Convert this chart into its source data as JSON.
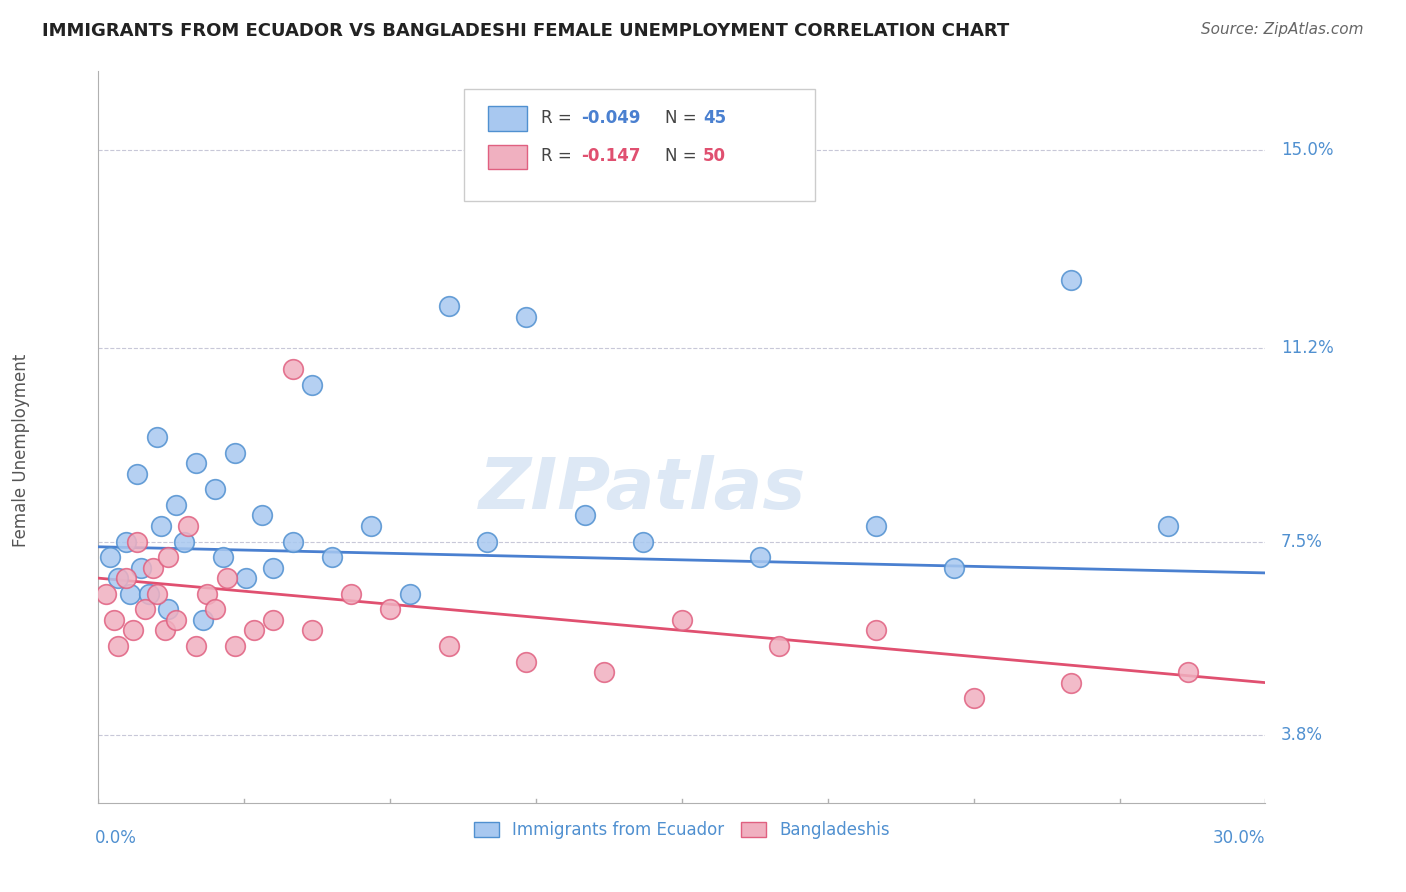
{
  "title": "IMMIGRANTS FROM ECUADOR VS BANGLADESHI FEMALE UNEMPLOYMENT CORRELATION CHART",
  "source": "Source: ZipAtlas.com",
  "ylabel": "Female Unemployment",
  "ytick_labels": [
    "3.8%",
    "7.5%",
    "11.2%",
    "15.0%"
  ],
  "ytick_values": [
    3.8,
    7.5,
    11.2,
    15.0
  ],
  "xrange": [
    0.0,
    30.0
  ],
  "yrange": [
    2.5,
    16.5
  ],
  "color_blue": "#a8c8f0",
  "color_pink": "#f0b0c0",
  "color_blue_edge": "#5090d0",
  "color_pink_edge": "#e06080",
  "color_blue_line": "#4a80d0",
  "color_pink_line": "#e05070",
  "color_title": "#222222",
  "color_yticks": "#5090d0",
  "color_xticks": "#5090d0",
  "blue_x": [
    0.3,
    0.5,
    0.7,
    0.8,
    1.0,
    1.1,
    1.3,
    1.5,
    1.6,
    1.8,
    2.0,
    2.2,
    2.5,
    2.7,
    3.0,
    3.2,
    3.5,
    3.8,
    4.2,
    4.5,
    5.0,
    5.5,
    6.0,
    7.0,
    8.0,
    9.0,
    10.0,
    11.0,
    12.5,
    14.0,
    17.0,
    20.0,
    22.0,
    25.0,
    27.5
  ],
  "blue_y": [
    7.2,
    6.8,
    7.5,
    6.5,
    8.8,
    7.0,
    6.5,
    9.5,
    7.8,
    6.2,
    8.2,
    7.5,
    9.0,
    6.0,
    8.5,
    7.2,
    9.2,
    6.8,
    8.0,
    7.0,
    7.5,
    10.5,
    7.2,
    7.8,
    6.5,
    12.0,
    7.5,
    11.8,
    8.0,
    7.5,
    7.2,
    7.8,
    7.0,
    12.5,
    7.8
  ],
  "pink_x": [
    0.2,
    0.4,
    0.5,
    0.7,
    0.9,
    1.0,
    1.2,
    1.4,
    1.5,
    1.7,
    1.8,
    2.0,
    2.3,
    2.5,
    2.8,
    3.0,
    3.3,
    3.5,
    4.0,
    4.5,
    5.0,
    5.5,
    6.5,
    7.5,
    9.0,
    11.0,
    13.0,
    15.0,
    17.5,
    20.0,
    22.5,
    25.0,
    28.0
  ],
  "pink_y": [
    6.5,
    6.0,
    5.5,
    6.8,
    5.8,
    7.5,
    6.2,
    7.0,
    6.5,
    5.8,
    7.2,
    6.0,
    7.8,
    5.5,
    6.5,
    6.2,
    6.8,
    5.5,
    5.8,
    6.0,
    10.8,
    5.8,
    6.5,
    6.2,
    5.5,
    5.2,
    5.0,
    6.0,
    5.5,
    5.8,
    4.5,
    4.8,
    5.0
  ],
  "blue_line_x": [
    0,
    30
  ],
  "blue_line_y_start": 7.4,
  "blue_line_y_end": 6.9,
  "pink_line_x": [
    0,
    30
  ],
  "pink_line_y_start": 6.8,
  "pink_line_y_end": 4.8
}
